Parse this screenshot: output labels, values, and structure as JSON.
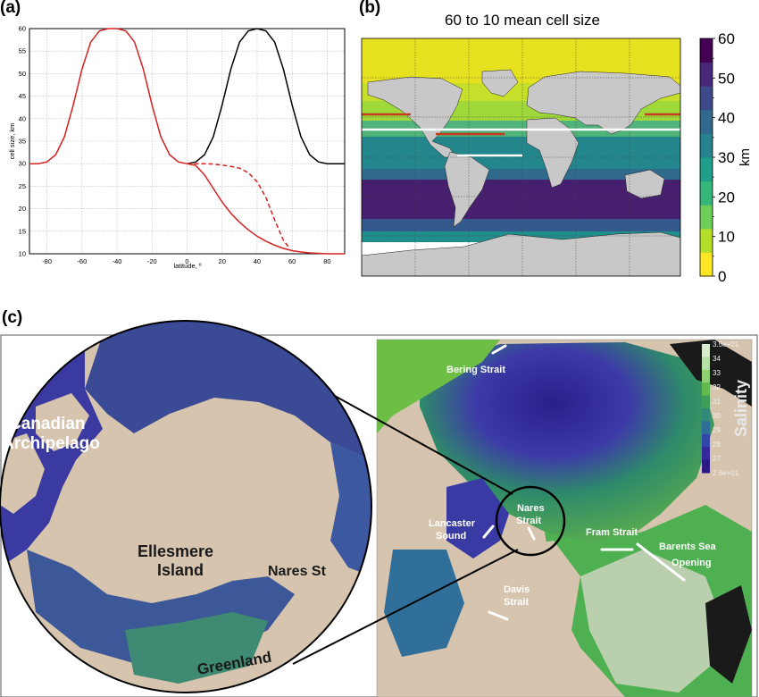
{
  "panel_labels": {
    "a": "(a)",
    "b": "(b)",
    "c": "(c)"
  },
  "chart_data": [
    {
      "type": "line",
      "panel": "(a)",
      "xlabel": "latitude, º",
      "ylabel": "cell size, km",
      "xlim": [
        -90,
        90
      ],
      "ylim": [
        10,
        60
      ],
      "xticks": [
        -80,
        -60,
        -40,
        -20,
        0,
        20,
        40,
        60,
        80
      ],
      "yticks": [
        10,
        15,
        20,
        25,
        30,
        35,
        40,
        45,
        50,
        55,
        60
      ],
      "grid": true,
      "series": [
        {
          "style": "solid",
          "color": "#000000",
          "x": [
            0,
            5,
            10,
            15,
            20,
            25,
            30,
            35,
            40,
            45,
            50,
            55,
            60,
            65,
            70,
            75,
            80,
            85,
            90
          ],
          "y": [
            30,
            30.4,
            32,
            36,
            43,
            51,
            57,
            59.5,
            60,
            59.5,
            57,
            51,
            43,
            36,
            32,
            30.4,
            30,
            30,
            30
          ]
        },
        {
          "style": "solid",
          "color": "#d62020",
          "x": [
            -90,
            -85,
            -80,
            -75,
            -70,
            -65,
            -60,
            -55,
            -50,
            -45,
            -40,
            -35,
            -30,
            -25,
            -20,
            -15,
            -10,
            -5,
            0,
            5,
            10,
            15,
            20,
            25,
            30,
            35,
            40,
            45,
            50,
            55,
            60,
            65,
            70,
            75,
            80,
            85,
            90
          ],
          "y": [
            30,
            30,
            30.4,
            32,
            36,
            43,
            51,
            57,
            59.5,
            60,
            60,
            59.5,
            57,
            51,
            43,
            36,
            32,
            30.4,
            30,
            29.6,
            27.5,
            24.5,
            21.5,
            19,
            17,
            15.3,
            13.9,
            12.8,
            11.9,
            11.2,
            10.7,
            10.4,
            10.2,
            10.1,
            10,
            10,
            10
          ]
        },
        {
          "style": "dashed",
          "color": "#d62020",
          "x": [
            0,
            5,
            10,
            15,
            20,
            25,
            30,
            35,
            40,
            45,
            50,
            55,
            58
          ],
          "y": [
            30,
            30,
            30,
            29.9,
            29.7,
            29.4,
            29,
            28,
            26,
            22.5,
            17.5,
            13,
            11.5
          ]
        }
      ]
    },
    {
      "type": "heatmap",
      "panel": "(b)",
      "title": "60 to 10 mean cell size",
      "colorbar_label": "km",
      "colorbar_ticks": [
        0,
        10,
        20,
        30,
        40,
        50,
        60
      ],
      "colorbar_minor_ticks": [
        5,
        15,
        25,
        35,
        45,
        55
      ],
      "colormap": [
        "#fde725",
        "#b5de2b",
        "#6ece58",
        "#35b779",
        "#1f9e89",
        "#26828e",
        "#31688e",
        "#3e4989",
        "#482878",
        "#440154"
      ],
      "land_color": "#c8c8c8",
      "highlight_lines": [
        {
          "color": "#ffffff",
          "desc": "transect"
        },
        {
          "color": "#c43b1d",
          "desc": "transect"
        }
      ]
    }
  ],
  "map_c": {
    "inset_labels": {
      "canadian_archipelago_1": "Canadian",
      "canadian_archipelago_2": "Archipelago",
      "ellesmere_1": "Ellesmere",
      "ellesmere_2": "Island",
      "nares_st": "Nares St",
      "greenland": "Greenland"
    },
    "map_labels": {
      "bering": "Bering Strait",
      "nares_1": "Nares",
      "nares_2": "Strait",
      "lancaster_1": "Lancaster",
      "lancaster_2": "Sound",
      "fram": "Fram Strait",
      "barents_1": "Barents Sea",
      "barents_2": "Opening",
      "davis_1": "Davis",
      "davis_2": "Strait"
    },
    "colorbar": {
      "title": "Salinity",
      "ticks": [
        "3.5e+01",
        "34",
        "33",
        "32",
        "31",
        "30",
        "29",
        "28",
        "27",
        "2.6e+01"
      ]
    }
  }
}
